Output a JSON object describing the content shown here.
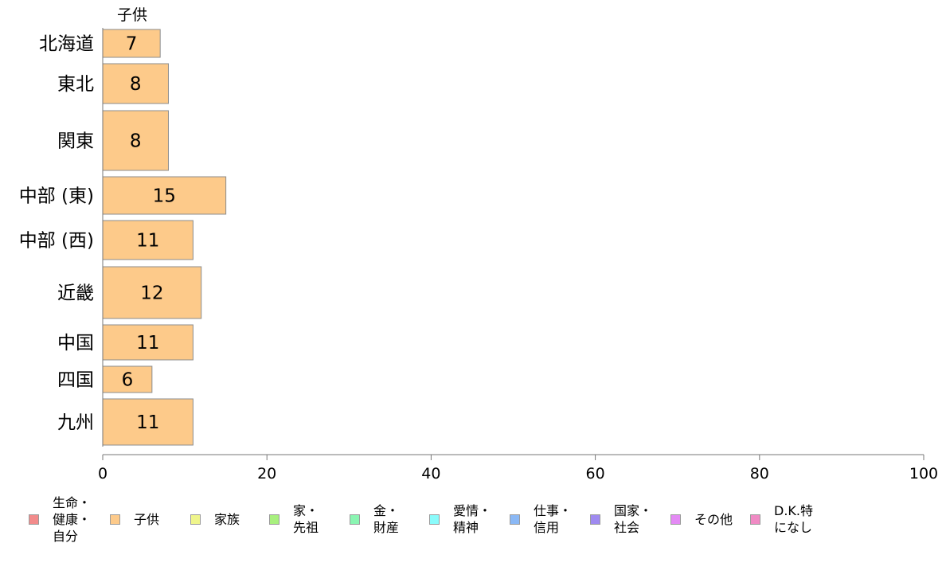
{
  "chart_data": {
    "type": "bar",
    "orientation": "horizontal",
    "series": [
      {
        "name": "子供",
        "values": [
          7,
          8,
          8,
          15,
          11,
          12,
          11,
          6,
          11
        ],
        "color": "#FDCA8A"
      }
    ],
    "categories": [
      "北海道",
      "東北",
      "関東",
      "中部 (東)",
      "中部 (西)",
      "近畿",
      "中国",
      "四国",
      "九州"
    ],
    "data_labels": [
      "7",
      "8",
      "8",
      "15",
      "11",
      "12",
      "11",
      "6",
      "11"
    ],
    "xlim": [
      0,
      100
    ],
    "x_ticks": [
      0,
      20,
      40,
      60,
      80,
      100
    ],
    "x_tick_labels": [
      "0",
      "20",
      "40",
      "60",
      "80",
      "100"
    ],
    "grid": false,
    "legend_position": "bottom",
    "legend": [
      {
        "label": "生命・\n健康・\n自分",
        "color": "#F28B8B"
      },
      {
        "label": "子供",
        "color": "#FDCA8A"
      },
      {
        "label": "家族",
        "color": "#EFF58B"
      },
      {
        "label": "家・\n先祖",
        "color": "#A8F07E"
      },
      {
        "label": "金・\n財産",
        "color": "#8AF5B2"
      },
      {
        "label": "愛情・\n精神",
        "color": "#8AFBFB"
      },
      {
        "label": "仕事・\n信用",
        "color": "#8AB8F5"
      },
      {
        "label": "国家・\n社会",
        "color": "#9F8AF0"
      },
      {
        "label": "その他",
        "color": "#E48AF5"
      },
      {
        "label": "D.K.特\nになし",
        "color": "#F08AC4"
      }
    ]
  }
}
